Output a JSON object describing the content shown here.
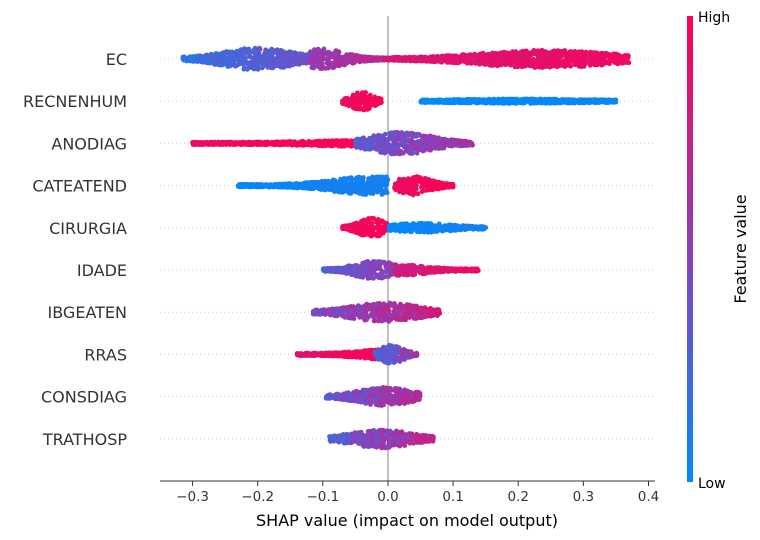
{
  "chart_data": {
    "type": "scatter",
    "subtype": "shap-beeswarm",
    "title": "",
    "xlabel": "SHAP value (impact on model output)",
    "xlim": [
      -0.35,
      0.41
    ],
    "xticks": [
      -0.3,
      -0.2,
      -0.1,
      0.0,
      0.1,
      0.2,
      0.3,
      0.4
    ],
    "xtick_labels": [
      "−0.3",
      "−0.2",
      "−0.1",
      "0.0",
      "0.1",
      "0.2",
      "0.3",
      "0.4"
    ],
    "colorbar": {
      "label": "Feature value",
      "high_label": "High",
      "low_label": "Low",
      "high_color": "#ff0052",
      "mid_color": "#8d3fb9",
      "low_color": "#008bfb"
    },
    "features": [
      {
        "name": "EC",
        "clusters": [
          {
            "x": [
              -0.315,
              -0.12
            ],
            "center": -0.2,
            "width": 0.55,
            "mix": [
              0.1,
              0.45
            ]
          },
          {
            "x": [
              -0.12,
              0.0
            ],
            "center": -0.1,
            "width": 0.5,
            "mix": [
              0.45,
              0.8
            ]
          },
          {
            "x": [
              0.0,
              0.37
            ],
            "center": 0.24,
            "width": 0.42,
            "mix": [
              0.8,
              0.95
            ]
          }
        ]
      },
      {
        "name": "RECNENHUM",
        "clusters": [
          {
            "x": [
              -0.07,
              -0.01
            ],
            "center": -0.04,
            "width": 0.45,
            "mix": [
              0.9,
              1.0
            ]
          },
          {
            "x": [
              0.05,
              0.35
            ],
            "center": 0.2,
            "width": 0.06,
            "mix": [
              0.0,
              0.05
            ]
          }
        ]
      },
      {
        "name": "ANODIAG",
        "clusters": [
          {
            "x": [
              -0.3,
              -0.05
            ],
            "center": -0.05,
            "width": 0.1,
            "mix": [
              0.9,
              1.0
            ]
          },
          {
            "x": [
              -0.05,
              0.13
            ],
            "center": 0.02,
            "width": 0.55,
            "mix": [
              0.2,
              0.75
            ]
          }
        ]
      },
      {
        "name": "CATEATEND",
        "clusters": [
          {
            "x": [
              -0.23,
              0.0
            ],
            "center": -0.02,
            "width": 0.45,
            "mix": [
              0.0,
              0.1
            ]
          },
          {
            "x": [
              0.01,
              0.1
            ],
            "center": 0.04,
            "width": 0.45,
            "mix": [
              0.9,
              1.0
            ]
          }
        ]
      },
      {
        "name": "CIRURGIA",
        "clusters": [
          {
            "x": [
              -0.07,
              0.0
            ],
            "center": -0.025,
            "width": 0.5,
            "mix": [
              0.9,
              1.0
            ]
          },
          {
            "x": [
              0.0,
              0.15
            ],
            "center": 0.05,
            "width": 0.2,
            "mix": [
              0.0,
              0.1
            ]
          }
        ]
      },
      {
        "name": "IDADE",
        "clusters": [
          {
            "x": [
              -0.1,
              0.01
            ],
            "center": -0.02,
            "width": 0.45,
            "mix": [
              0.2,
              0.6
            ]
          },
          {
            "x": [
              0.01,
              0.14
            ],
            "center": 0.02,
            "width": 0.25,
            "mix": [
              0.7,
              1.0
            ]
          }
        ]
      },
      {
        "name": "IBGEATEN",
        "clusters": [
          {
            "x": [
              -0.115,
              0.08
            ],
            "center": -0.005,
            "width": 0.45,
            "mix": [
              0.3,
              0.9
            ]
          }
        ]
      },
      {
        "name": "RRAS",
        "clusters": [
          {
            "x": [
              -0.14,
              0.0
            ],
            "center": -0.01,
            "width": 0.2,
            "mix": [
              0.85,
              1.0
            ]
          },
          {
            "x": [
              -0.02,
              0.045
            ],
            "center": 0.005,
            "width": 0.45,
            "mix": [
              0.15,
              0.7
            ]
          }
        ]
      },
      {
        "name": "CONSDIAG",
        "clusters": [
          {
            "x": [
              -0.095,
              0.05
            ],
            "center": -0.005,
            "width": 0.45,
            "mix": [
              0.2,
              0.8
            ]
          }
        ]
      },
      {
        "name": "TRATHOSP",
        "clusters": [
          {
            "x": [
              -0.09,
              0.07
            ],
            "center": -0.01,
            "width": 0.45,
            "mix": [
              0.15,
              0.85
            ]
          }
        ]
      }
    ]
  }
}
